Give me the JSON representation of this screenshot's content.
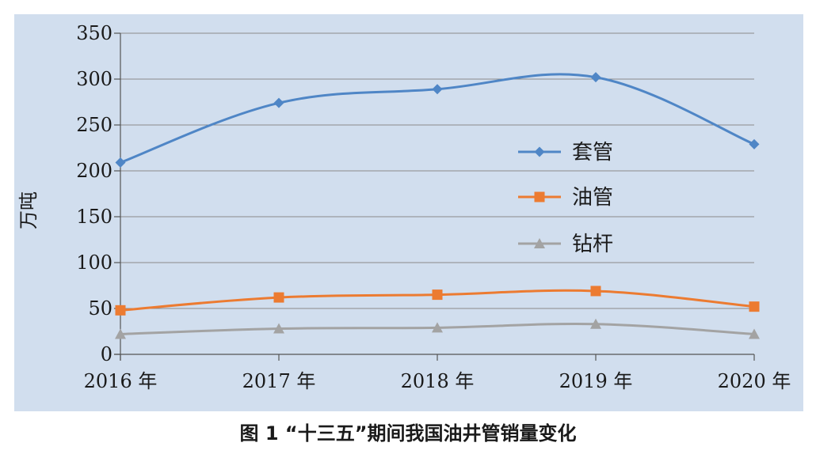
{
  "caption": "图 1 “十三五”期间我国油井管销量变化",
  "chart_data": {
    "type": "line",
    "title": "",
    "xlabel": "",
    "ylabel": "万吨",
    "categories": [
      "2016 年",
      "2017 年",
      "2018 年",
      "2019 年",
      "2020 年"
    ],
    "ylim": [
      0,
      350
    ],
    "yticks": [
      0,
      50,
      100,
      150,
      200,
      250,
      300,
      350
    ],
    "grid": true,
    "legend_position": "right",
    "series": [
      {
        "name": "套管",
        "values": [
          209,
          274,
          289,
          302,
          229
        ],
        "color": "#4f86c6",
        "marker": "diamond"
      },
      {
        "name": "油管",
        "values": [
          48,
          62,
          65,
          69,
          52
        ],
        "color": "#ec7b31",
        "marker": "square"
      },
      {
        "name": "钻杆",
        "values": [
          22,
          28,
          29,
          33,
          22
        ],
        "color": "#a3a3a3",
        "marker": "triangle"
      }
    ]
  }
}
